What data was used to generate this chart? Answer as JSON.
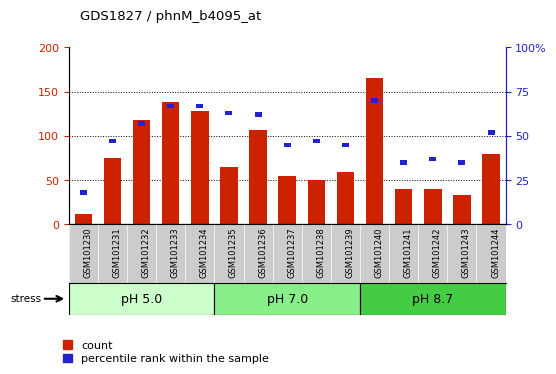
{
  "title": "GDS1827 / phnM_b4095_at",
  "categories": [
    "GSM101230",
    "GSM101231",
    "GSM101232",
    "GSM101233",
    "GSM101234",
    "GSM101235",
    "GSM101236",
    "GSM101237",
    "GSM101238",
    "GSM101239",
    "GSM101240",
    "GSM101241",
    "GSM101242",
    "GSM101243",
    "GSM101244"
  ],
  "count_values": [
    12,
    75,
    118,
    138,
    128,
    65,
    107,
    55,
    50,
    59,
    165,
    40,
    40,
    33,
    80
  ],
  "percentile_values": [
    18,
    47,
    57,
    67,
    67,
    63,
    62,
    45,
    47,
    45,
    70,
    35,
    37,
    35,
    52
  ],
  "bar_color": "#cc2200",
  "pct_color": "#2222cc",
  "ylim_left": [
    0,
    200
  ],
  "ylim_right": [
    0,
    100
  ],
  "yticks_left": [
    0,
    50,
    100,
    150,
    200
  ],
  "yticks_right": [
    0,
    25,
    50,
    75,
    100
  ],
  "yticklabels_right": [
    "0",
    "25",
    "50",
    "75",
    "100%"
  ],
  "yticklabels_left": [
    "0",
    "50",
    "100",
    "150",
    "200"
  ],
  "groups": [
    {
      "label": "pH 5.0",
      "start": 0,
      "end": 5,
      "color": "#ccffcc"
    },
    {
      "label": "pH 7.0",
      "start": 5,
      "end": 10,
      "color": "#88ee88"
    },
    {
      "label": "pH 8.7",
      "start": 10,
      "end": 15,
      "color": "#44cc44"
    }
  ],
  "stress_label": "stress",
  "legend_count_label": "count",
  "legend_pct_label": "percentile rank within the sample",
  "bar_width": 0.6,
  "plot_bg_color": "#ffffff",
  "xtick_bg_color": "#cccccc"
}
